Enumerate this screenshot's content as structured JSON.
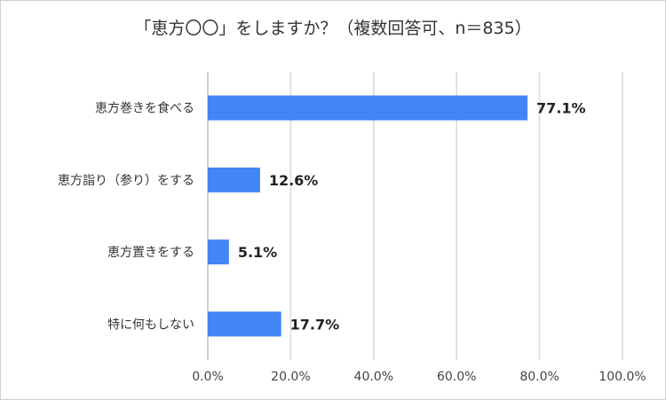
{
  "chart_data": {
    "type": "bar",
    "orientation": "horizontal",
    "title": "「恵方〇〇」をしますか？（複数回答可、n＝835）",
    "categories": [
      "恵方巻きを食べる",
      "恵方詣り（参り）をする",
      "恵方置きをする",
      "特に何もしない"
    ],
    "values": [
      77.1,
      12.6,
      5.1,
      17.7
    ],
    "data_labels": [
      "77.1%",
      "12.6%",
      "5.1%",
      "17.7%"
    ],
    "xlim": [
      0,
      100
    ],
    "xticks": [
      "0.0%",
      "20.0%",
      "40.0%",
      "60.0%",
      "80.0%",
      "100.0%"
    ],
    "grid": true,
    "bar_color": "#4285f4",
    "xlabel": "",
    "ylabel": ""
  }
}
